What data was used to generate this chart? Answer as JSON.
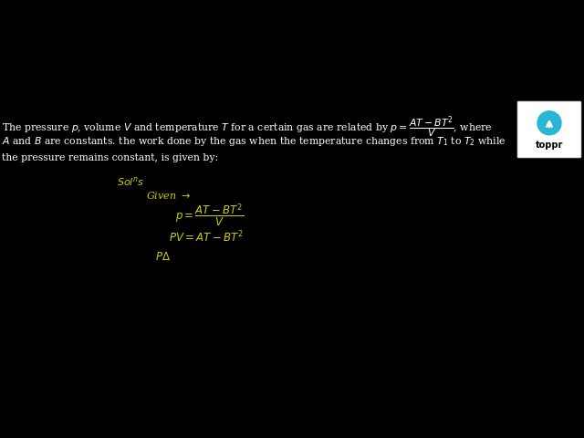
{
  "bg_color": "#000000",
  "text_color": "#ffffff",
  "yellow_color": "#cccc00",
  "toppr_circle_color": "#29b6d4",
  "fig_w": 6.4,
  "fig_h": 4.8,
  "dpi": 100
}
